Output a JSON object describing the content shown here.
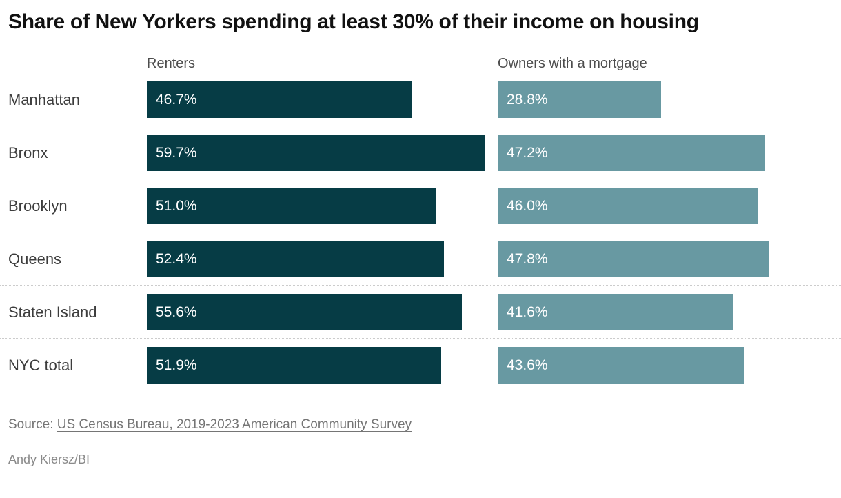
{
  "chart_data": {
    "type": "bar",
    "orientation": "horizontal",
    "title": "Share of New Yorkers spending at least 30% of their income on housing",
    "categories": [
      "Manhattan",
      "Bronx",
      "Brooklyn",
      "Queens",
      "Staten Island",
      "NYC total"
    ],
    "series": [
      {
        "name": "Renters",
        "color": "#063c45",
        "values": [
          46.7,
          59.7,
          51.0,
          52.4,
          55.6,
          51.9
        ]
      },
      {
        "name": "Owners with a mortgage",
        "color": "#6899a2",
        "values": [
          28.8,
          47.2,
          46.0,
          47.8,
          41.6,
          43.6
        ]
      }
    ],
    "value_suffix": "%",
    "value_decimals": 1,
    "xlim": [
      0,
      61
    ],
    "grid": "dotted row separators",
    "legend_position": "column headers above each bar group",
    "bar_label_position": "inside-start",
    "bar_label_color": "#ffffff"
  },
  "source": {
    "prefix": "Source: ",
    "link_text": "US Census Bureau, 2019-2023 American Community Survey"
  },
  "byline": "Andy Kiersz/BI"
}
